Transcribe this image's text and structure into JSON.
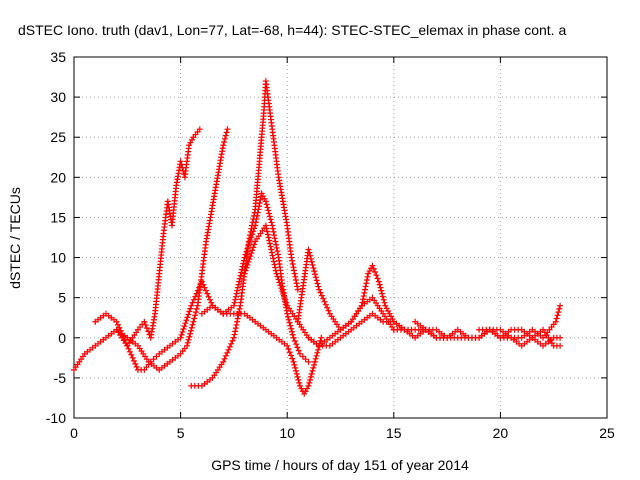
{
  "chart_data": {
    "type": "scatter",
    "title": "dSTEC Iono. truth (dav1, Lon=77, Lat=-68, h=44): STEC-STEC_elemax in phase cont. a",
    "xlabel": "GPS time / hours of day 151 of year 2014",
    "ylabel": "dSTEC  / TECUs",
    "xlim": [
      0,
      25
    ],
    "ylim": [
      -10,
      35
    ],
    "x_ticks": [
      "0",
      "5",
      "10",
      "15",
      "20",
      "25"
    ],
    "y_ticks": [
      "-10",
      "-5",
      "0",
      "5",
      "10",
      "15",
      "20",
      "25",
      "30",
      "35"
    ],
    "grid": true,
    "marker": "plus",
    "color": "#ff0000",
    "series": [
      {
        "x": [
          0.0,
          0.5,
          1.0,
          1.5,
          2.0,
          2.5,
          3.0,
          3.3,
          3.6,
          3.8,
          4.0,
          4.2,
          4.4,
          4.6,
          4.8,
          5.0,
          5.2,
          5.4,
          5.6,
          5.9
        ],
        "y": [
          -4,
          -2,
          -1,
          0,
          1,
          -1,
          1,
          2,
          0,
          3,
          8,
          13,
          17,
          14,
          19,
          22,
          20,
          24,
          25,
          26
        ]
      },
      {
        "x": [
          2.0,
          2.5,
          3.0,
          3.5,
          4.0,
          4.5,
          5.0,
          5.3,
          5.6,
          5.8,
          6.0,
          6.2,
          6.4,
          6.6,
          6.8,
          7.0,
          7.2
        ],
        "y": [
          1,
          0,
          -1,
          -3,
          -4,
          -3,
          -2,
          -1,
          2,
          4,
          8,
          12,
          15,
          18,
          21,
          24,
          26
        ]
      },
      {
        "x": [
          1.0,
          1.5,
          2.0,
          2.5,
          3.0,
          3.3,
          3.6,
          4.0,
          4.5,
          5.0,
          5.5,
          6.0,
          6.5,
          7.0
        ],
        "y": [
          2,
          3,
          2,
          -1,
          -4,
          -4,
          -3,
          -2,
          -1,
          0,
          4,
          7,
          4,
          3
        ]
      },
      {
        "x": [
          5.5,
          6.0,
          6.5,
          7.0,
          7.5,
          7.8,
          8.0,
          8.2,
          8.5,
          8.7,
          8.9,
          9.0,
          9.2,
          9.4,
          9.6,
          9.8,
          10.0,
          10.2,
          10.5
        ],
        "y": [
          -6,
          -6,
          -5,
          -3,
          0,
          4,
          8,
          12,
          16,
          22,
          28,
          32,
          28,
          24,
          20,
          17,
          14,
          10,
          6
        ]
      },
      {
        "x": [
          6.0,
          6.5,
          7.0,
          7.5,
          8.0,
          8.5,
          9.0,
          9.5,
          10.0,
          10.3,
          10.6,
          10.8,
          11.0,
          11.3,
          11.6
        ],
        "y": [
          3,
          4,
          3,
          3,
          3,
          2,
          1,
          0,
          -1,
          -3,
          -6,
          -7,
          -6,
          -3,
          0
        ]
      },
      {
        "x": [
          7.0,
          7.5,
          8.0,
          8.5,
          8.8,
          9.0,
          9.3,
          9.6,
          9.8,
          10.0,
          10.3,
          10.6,
          11.0
        ],
        "y": [
          3,
          4,
          10,
          14,
          18,
          17,
          14,
          10,
          6,
          3,
          0,
          -2,
          -3
        ]
      },
      {
        "x": [
          8.0,
          8.5,
          9.0,
          9.5,
          10.0,
          10.5,
          11.0,
          11.5,
          12.0,
          12.5,
          13.0,
          13.5,
          14.0,
          14.5,
          15.0
        ],
        "y": [
          8,
          12,
          14,
          8,
          4,
          2,
          0,
          -1,
          0,
          1,
          2,
          4,
          5,
          3,
          1
        ]
      },
      {
        "x": [
          10.5,
          11.0,
          11.5,
          12.0,
          12.5,
          13.0,
          13.5,
          13.8,
          14.0,
          14.3,
          14.6,
          15.0,
          15.5
        ],
        "y": [
          2,
          11,
          6,
          3,
          1,
          2,
          4,
          8,
          9,
          7,
          4,
          2,
          1
        ]
      },
      {
        "x": [
          11.0,
          11.5,
          12.0,
          12.5,
          13.0,
          13.5,
          14.0,
          14.5,
          15.0,
          15.5,
          16.0,
          16.5,
          17.0,
          17.5
        ],
        "y": [
          0,
          -1,
          -1,
          0,
          1,
          2,
          3,
          2,
          2,
          1,
          1,
          1,
          0,
          0
        ]
      },
      {
        "x": [
          15.0,
          15.5,
          16.0,
          16.5,
          17.0,
          17.5,
          18.0,
          18.5,
          19.0,
          19.5,
          20.0,
          20.5,
          21.0,
          21.5,
          22.0,
          22.3,
          22.6,
          22.8
        ],
        "y": [
          1,
          1,
          0,
          1,
          0,
          0,
          1,
          0,
          0,
          1,
          1,
          0,
          0,
          1,
          0,
          1,
          2,
          4
        ]
      },
      {
        "x": [
          16.0,
          16.5,
          17.0,
          17.5,
          18.0,
          18.5,
          19.0,
          19.5,
          20.0,
          20.5,
          21.0,
          21.5,
          22.0,
          22.5,
          22.8
        ],
        "y": [
          2,
          1,
          1,
          0,
          0,
          0,
          0,
          1,
          0,
          0,
          -1,
          0,
          1,
          -1,
          -1
        ]
      },
      {
        "x": [
          19.0,
          19.5,
          20.0,
          20.5,
          21.0,
          21.5,
          22.0,
          22.5,
          22.8
        ],
        "y": [
          1,
          1,
          0,
          1,
          1,
          0,
          -1,
          0,
          0
        ]
      }
    ]
  }
}
